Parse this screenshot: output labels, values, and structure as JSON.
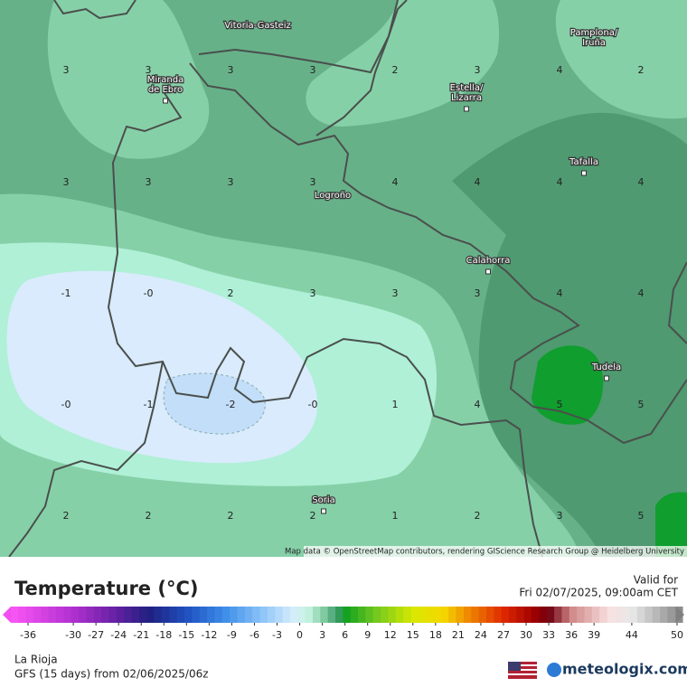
{
  "map": {
    "cities": [
      {
        "lines": [
          "Vitoria-Gasteiz"
        ]
      },
      {
        "lines": [
          "Pamplona/",
          "Iruña"
        ]
      },
      {
        "lines": [
          "Miranda",
          "de Ebro"
        ]
      },
      {
        "lines": [
          "Estella/",
          "Lizarra"
        ]
      },
      {
        "lines": [
          "Tafalla"
        ]
      },
      {
        "lines": [
          "Logroño"
        ]
      },
      {
        "lines": [
          "Calahorra"
        ]
      },
      {
        "lines": [
          "Tudela"
        ]
      },
      {
        "lines": [
          "Soria"
        ]
      }
    ],
    "grid_values": [
      [
        "3",
        "3",
        "3",
        "3",
        "2",
        "3",
        "4",
        "2"
      ],
      [
        "3",
        "3",
        "3",
        "3",
        "4",
        "4",
        "4",
        "4"
      ],
      [
        "-1",
        "-0",
        "2",
        "3",
        "3",
        "3",
        "4",
        "4"
      ],
      [
        "-0",
        "-1",
        "-2",
        "-0",
        "1",
        "4",
        "5",
        "5"
      ],
      [
        "2",
        "2",
        "2",
        "2",
        "1",
        "2",
        "3",
        "5"
      ]
    ],
    "attribution": "Map data © OpenStreetMap contributors, rendering GIScience Research Group @ Heidelberg University"
  },
  "footer": {
    "title": "Temperature (°C)",
    "valid_label": "Valid for",
    "valid_time": "Fri 02/07/2025, 09:00am CET",
    "region": "La Rioja",
    "model_run": "GFS (15 days) from  02/06/2025/06z",
    "logo": "meteologix.com",
    "scale_ticks": [
      -36,
      -30,
      -27,
      -24,
      -21,
      -18,
      -15,
      -12,
      -9,
      -6,
      -3,
      0,
      3,
      6,
      9,
      12,
      15,
      18,
      21,
      24,
      27,
      30,
      33,
      36,
      39,
      44,
      50
    ]
  }
}
